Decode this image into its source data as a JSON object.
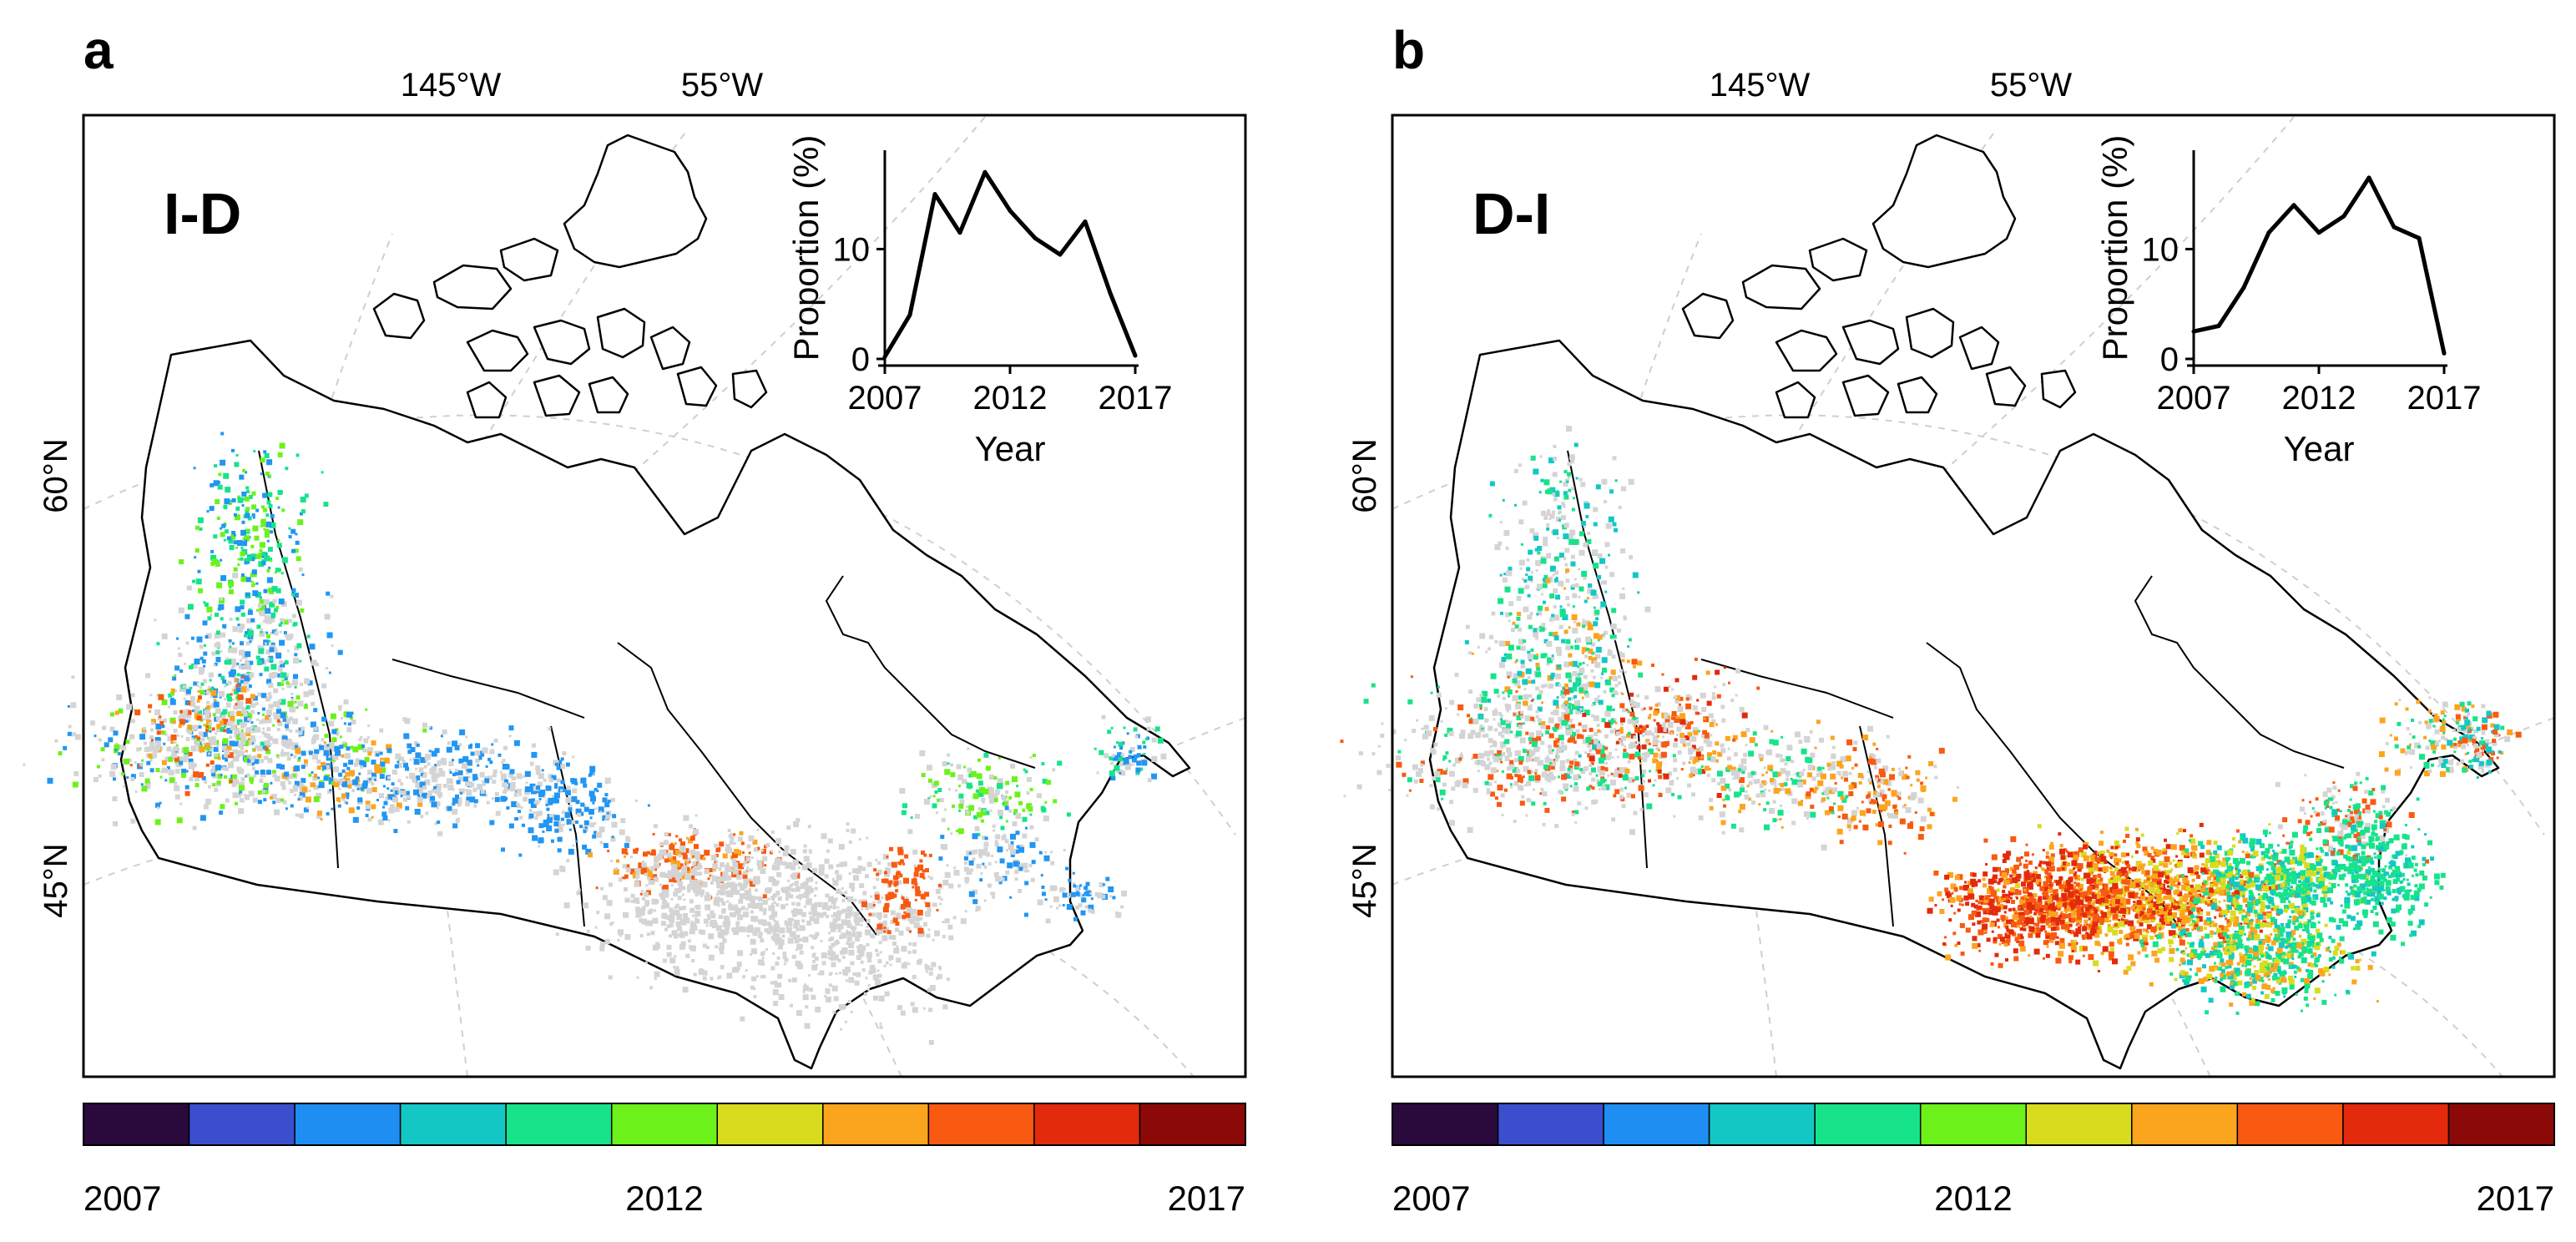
{
  "figure": {
    "panels": [
      {
        "letter": "a",
        "map_label": "I-D",
        "lon_labels": [
          "145°W",
          "55°W"
        ],
        "lat_labels": [
          "60°N",
          "45°N"
        ],
        "colorbar": {
          "colors": [
            "#2a0a3d",
            "#3b4fce",
            "#1e8ef2",
            "#13c8c4",
            "#17e38a",
            "#6cf21a",
            "#d8dc1f",
            "#fba51f",
            "#f85a11",
            "#e32a0c",
            "#8b0a08"
          ],
          "tick_labels": [
            "2007",
            "2012",
            "2017"
          ]
        },
        "disturbance_palette": [
          "#d4d4d4",
          "#2196f3",
          "#17e38a",
          "#6cf21a",
          "#fba51f",
          "#f85a11"
        ]
      },
      {
        "letter": "b",
        "map_label": "D-I",
        "lon_labels": [
          "145°W",
          "55°W"
        ],
        "lat_labels": [
          "60°N",
          "45°N"
        ],
        "colorbar": {
          "colors": [
            "#2a0a3d",
            "#3b4fce",
            "#1e8ef2",
            "#13c8c4",
            "#17e38a",
            "#6cf21a",
            "#d8dc1f",
            "#fba51f",
            "#f85a11",
            "#e32a0c",
            "#8b0a08"
          ],
          "tick_labels": [
            "2007",
            "2012",
            "2017"
          ]
        },
        "disturbance_palette": [
          "#d4d4d4",
          "#17e38a",
          "#13c8c4",
          "#fba51f",
          "#f85a11",
          "#e32a0c",
          "#d8dc1f"
        ]
      }
    ]
  },
  "chart_data": [
    {
      "type": "line",
      "panel": "a",
      "title": "",
      "xlabel": "Year",
      "ylabel": "Proportion (%)",
      "x": [
        2007,
        2008,
        2009,
        2010,
        2011,
        2012,
        2013,
        2014,
        2015,
        2016,
        2017
      ],
      "series": [
        {
          "name": "I-D",
          "values": [
            0.2,
            4,
            15,
            11.5,
            17,
            13.5,
            11,
            9.5,
            12.5,
            6,
            0.3
          ]
        }
      ],
      "xlim": [
        2007,
        2017
      ],
      "ylim": [
        0,
        19
      ],
      "xticks": [
        2007,
        2012,
        2017
      ],
      "yticks": [
        0,
        10
      ],
      "grid": false
    },
    {
      "type": "line",
      "panel": "b",
      "title": "",
      "xlabel": "Year",
      "ylabel": "Proportion (%)",
      "x": [
        2007,
        2008,
        2009,
        2010,
        2011,
        2012,
        2013,
        2014,
        2015,
        2016,
        2017
      ],
      "series": [
        {
          "name": "D-I",
          "values": [
            2.5,
            3,
            6.5,
            11.5,
            14,
            11.5,
            13,
            16.5,
            12,
            11,
            0.5
          ]
        }
      ],
      "xlim": [
        2007,
        2017
      ],
      "ylim": [
        0,
        19
      ],
      "xticks": [
        2007,
        2012,
        2017
      ],
      "yticks": [
        0,
        10
      ],
      "grid": false
    }
  ]
}
